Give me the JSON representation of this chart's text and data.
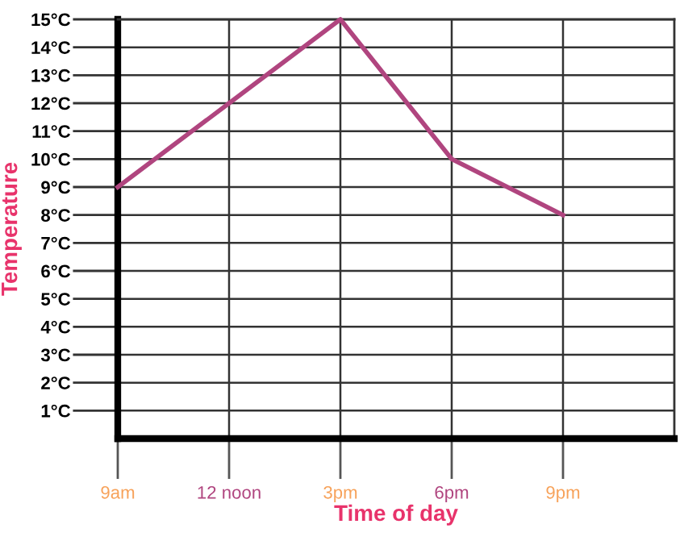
{
  "chart_data": {
    "type": "line",
    "xlabel": "Time of day",
    "ylabel": "Temperature",
    "categories": [
      "9am",
      "12 noon",
      "3pm",
      "6pm",
      "9pm"
    ],
    "series": [
      {
        "color": "#b0457f",
        "values": [
          9,
          12,
          15,
          10,
          8
        ]
      }
    ],
    "ylim": [
      0,
      15
    ],
    "yticks": [
      {
        "value": 1,
        "label": "1°C"
      },
      {
        "value": 2,
        "label": "2°C"
      },
      {
        "value": 3,
        "label": "3°C"
      },
      {
        "value": 4,
        "label": "4°C"
      },
      {
        "value": 5,
        "label": "5°C"
      },
      {
        "value": 6,
        "label": "6°C"
      },
      {
        "value": 7,
        "label": "7°C"
      },
      {
        "value": 8,
        "label": "8°C"
      },
      {
        "value": 9,
        "label": "9°C"
      },
      {
        "value": 10,
        "label": "10°C"
      },
      {
        "value": 11,
        "label": "11°C"
      },
      {
        "value": 12,
        "label": "12°C"
      },
      {
        "value": 13,
        "label": "13°C"
      },
      {
        "value": 14,
        "label": "14°C"
      },
      {
        "value": 15,
        "label": "15°C"
      }
    ],
    "grid": true,
    "marker": "none",
    "line_style": "solid"
  }
}
